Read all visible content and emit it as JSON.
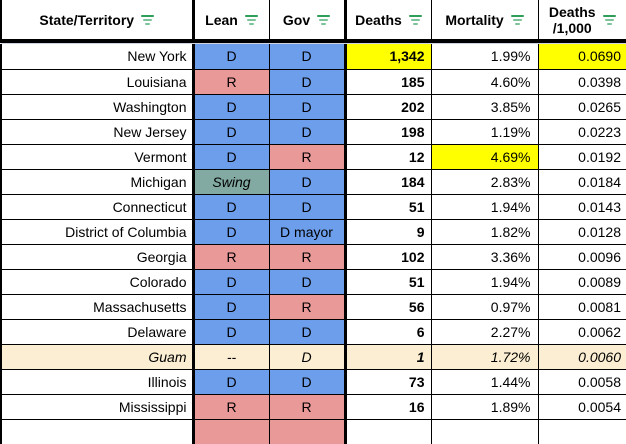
{
  "table_title": "State/Territory COVID table",
  "header": {
    "columns": [
      {
        "label": "State/Territory"
      },
      {
        "label": "Lean"
      },
      {
        "label": "Gov"
      },
      {
        "label": "Deaths"
      },
      {
        "label": "Mortality"
      },
      {
        "label": "Deaths\n/1,000"
      }
    ],
    "filter_icon": "filter-icon"
  },
  "colors": {
    "dem_blue": "#6d9eeb",
    "rep_red": "#ea9999",
    "swing_teal": "#82aaa2",
    "territory_cream": "#fceed3",
    "highlight_yellow": "#ffff00",
    "filter_green": "#2f9e58",
    "divider_gray": "#cdd5e3"
  },
  "rows": [
    {
      "state": "New York",
      "lean": "D",
      "lean_party": "D",
      "gov": "D",
      "gov_party": "D",
      "deaths": "1,342",
      "deaths_hl": true,
      "mortality": "1.99%",
      "mortality_hl": false,
      "per_1000": "0.0690",
      "per_1000_hl": true,
      "italic": false,
      "row_bg": null
    },
    {
      "state": "Louisiana",
      "lean": "R",
      "lean_party": "R",
      "gov": "D",
      "gov_party": "D",
      "deaths": "185",
      "deaths_hl": false,
      "mortality": "4.60%",
      "mortality_hl": false,
      "per_1000": "0.0398",
      "per_1000_hl": false,
      "italic": false,
      "row_bg": null
    },
    {
      "state": "Washington",
      "lean": "D",
      "lean_party": "D",
      "gov": "D",
      "gov_party": "D",
      "deaths": "202",
      "deaths_hl": false,
      "mortality": "3.85%",
      "mortality_hl": false,
      "per_1000": "0.0265",
      "per_1000_hl": false,
      "italic": false,
      "row_bg": null
    },
    {
      "state": "New Jersey",
      "lean": "D",
      "lean_party": "D",
      "gov": "D",
      "gov_party": "D",
      "deaths": "198",
      "deaths_hl": false,
      "mortality": "1.19%",
      "mortality_hl": false,
      "per_1000": "0.0223",
      "per_1000_hl": false,
      "italic": false,
      "row_bg": null
    },
    {
      "state": "Vermont",
      "lean": "D",
      "lean_party": "D",
      "gov": "R",
      "gov_party": "R",
      "deaths": "12",
      "deaths_hl": false,
      "mortality": "4.69%",
      "mortality_hl": true,
      "per_1000": "0.0192",
      "per_1000_hl": false,
      "italic": false,
      "row_bg": null
    },
    {
      "state": "Michigan",
      "lean": "Swing",
      "lean_party": "Swing",
      "lean_italic": true,
      "gov": "D",
      "gov_party": "D",
      "deaths": "184",
      "deaths_hl": false,
      "mortality": "2.83%",
      "mortality_hl": false,
      "per_1000": "0.0184",
      "per_1000_hl": false,
      "italic": false,
      "row_bg": null
    },
    {
      "state": "Connecticut",
      "lean": "D",
      "lean_party": "D",
      "gov": "D",
      "gov_party": "D",
      "deaths": "51",
      "deaths_hl": false,
      "mortality": "1.94%",
      "mortality_hl": false,
      "per_1000": "0.0143",
      "per_1000_hl": false,
      "italic": false,
      "row_bg": null
    },
    {
      "state": "District of Columbia",
      "lean": "D",
      "lean_party": "D",
      "gov": "D mayor",
      "gov_party": "D",
      "deaths": "9",
      "deaths_hl": false,
      "mortality": "1.82%",
      "mortality_hl": false,
      "per_1000": "0.0128",
      "per_1000_hl": false,
      "italic": false,
      "row_bg": null
    },
    {
      "state": "Georgia",
      "lean": "R",
      "lean_party": "R",
      "gov": "R",
      "gov_party": "R",
      "deaths": "102",
      "deaths_hl": false,
      "mortality": "3.36%",
      "mortality_hl": false,
      "per_1000": "0.0096",
      "per_1000_hl": false,
      "italic": false,
      "row_bg": null
    },
    {
      "state": "Colorado",
      "lean": "D",
      "lean_party": "D",
      "gov": "D",
      "gov_party": "D",
      "deaths": "51",
      "deaths_hl": false,
      "mortality": "1.94%",
      "mortality_hl": false,
      "per_1000": "0.0089",
      "per_1000_hl": false,
      "italic": false,
      "row_bg": null
    },
    {
      "state": "Massachusetts",
      "lean": "D",
      "lean_party": "D",
      "gov": "R",
      "gov_party": "R",
      "deaths": "56",
      "deaths_hl": false,
      "mortality": "0.97%",
      "mortality_hl": false,
      "per_1000": "0.0081",
      "per_1000_hl": false,
      "italic": false,
      "row_bg": null
    },
    {
      "state": "Delaware",
      "lean": "D",
      "lean_party": "D",
      "gov": "D",
      "gov_party": "D",
      "deaths": "6",
      "deaths_hl": false,
      "mortality": "2.27%",
      "mortality_hl": false,
      "per_1000": "0.0062",
      "per_1000_hl": false,
      "italic": false,
      "row_bg": null
    },
    {
      "state": "Guam",
      "lean": "--",
      "lean_party": null,
      "gov": "D",
      "gov_party": null,
      "deaths": "1",
      "deaths_hl": false,
      "mortality": "1.72%",
      "mortality_hl": false,
      "per_1000": "0.0060",
      "per_1000_hl": false,
      "italic": true,
      "row_bg": "territory_cream"
    },
    {
      "state": "Illinois",
      "lean": "D",
      "lean_party": "D",
      "gov": "D",
      "gov_party": "D",
      "deaths": "73",
      "deaths_hl": false,
      "mortality": "1.44%",
      "mortality_hl": false,
      "per_1000": "0.0058",
      "per_1000_hl": false,
      "italic": false,
      "row_bg": null
    },
    {
      "state": "Mississippi",
      "lean": "R",
      "lean_party": "R",
      "gov": "R",
      "gov_party": "R",
      "deaths": "16",
      "deaths_hl": false,
      "mortality": "1.89%",
      "mortality_hl": false,
      "per_1000": "0.0054",
      "per_1000_hl": false,
      "italic": false,
      "row_bg": null
    },
    {
      "state": "",
      "lean": "",
      "lean_party": "R",
      "gov": "",
      "gov_party": "R",
      "deaths": "",
      "deaths_hl": false,
      "mortality": "",
      "mortality_hl": false,
      "per_1000": "",
      "per_1000_hl": false,
      "italic": false,
      "row_bg": null,
      "partial": true
    }
  ]
}
